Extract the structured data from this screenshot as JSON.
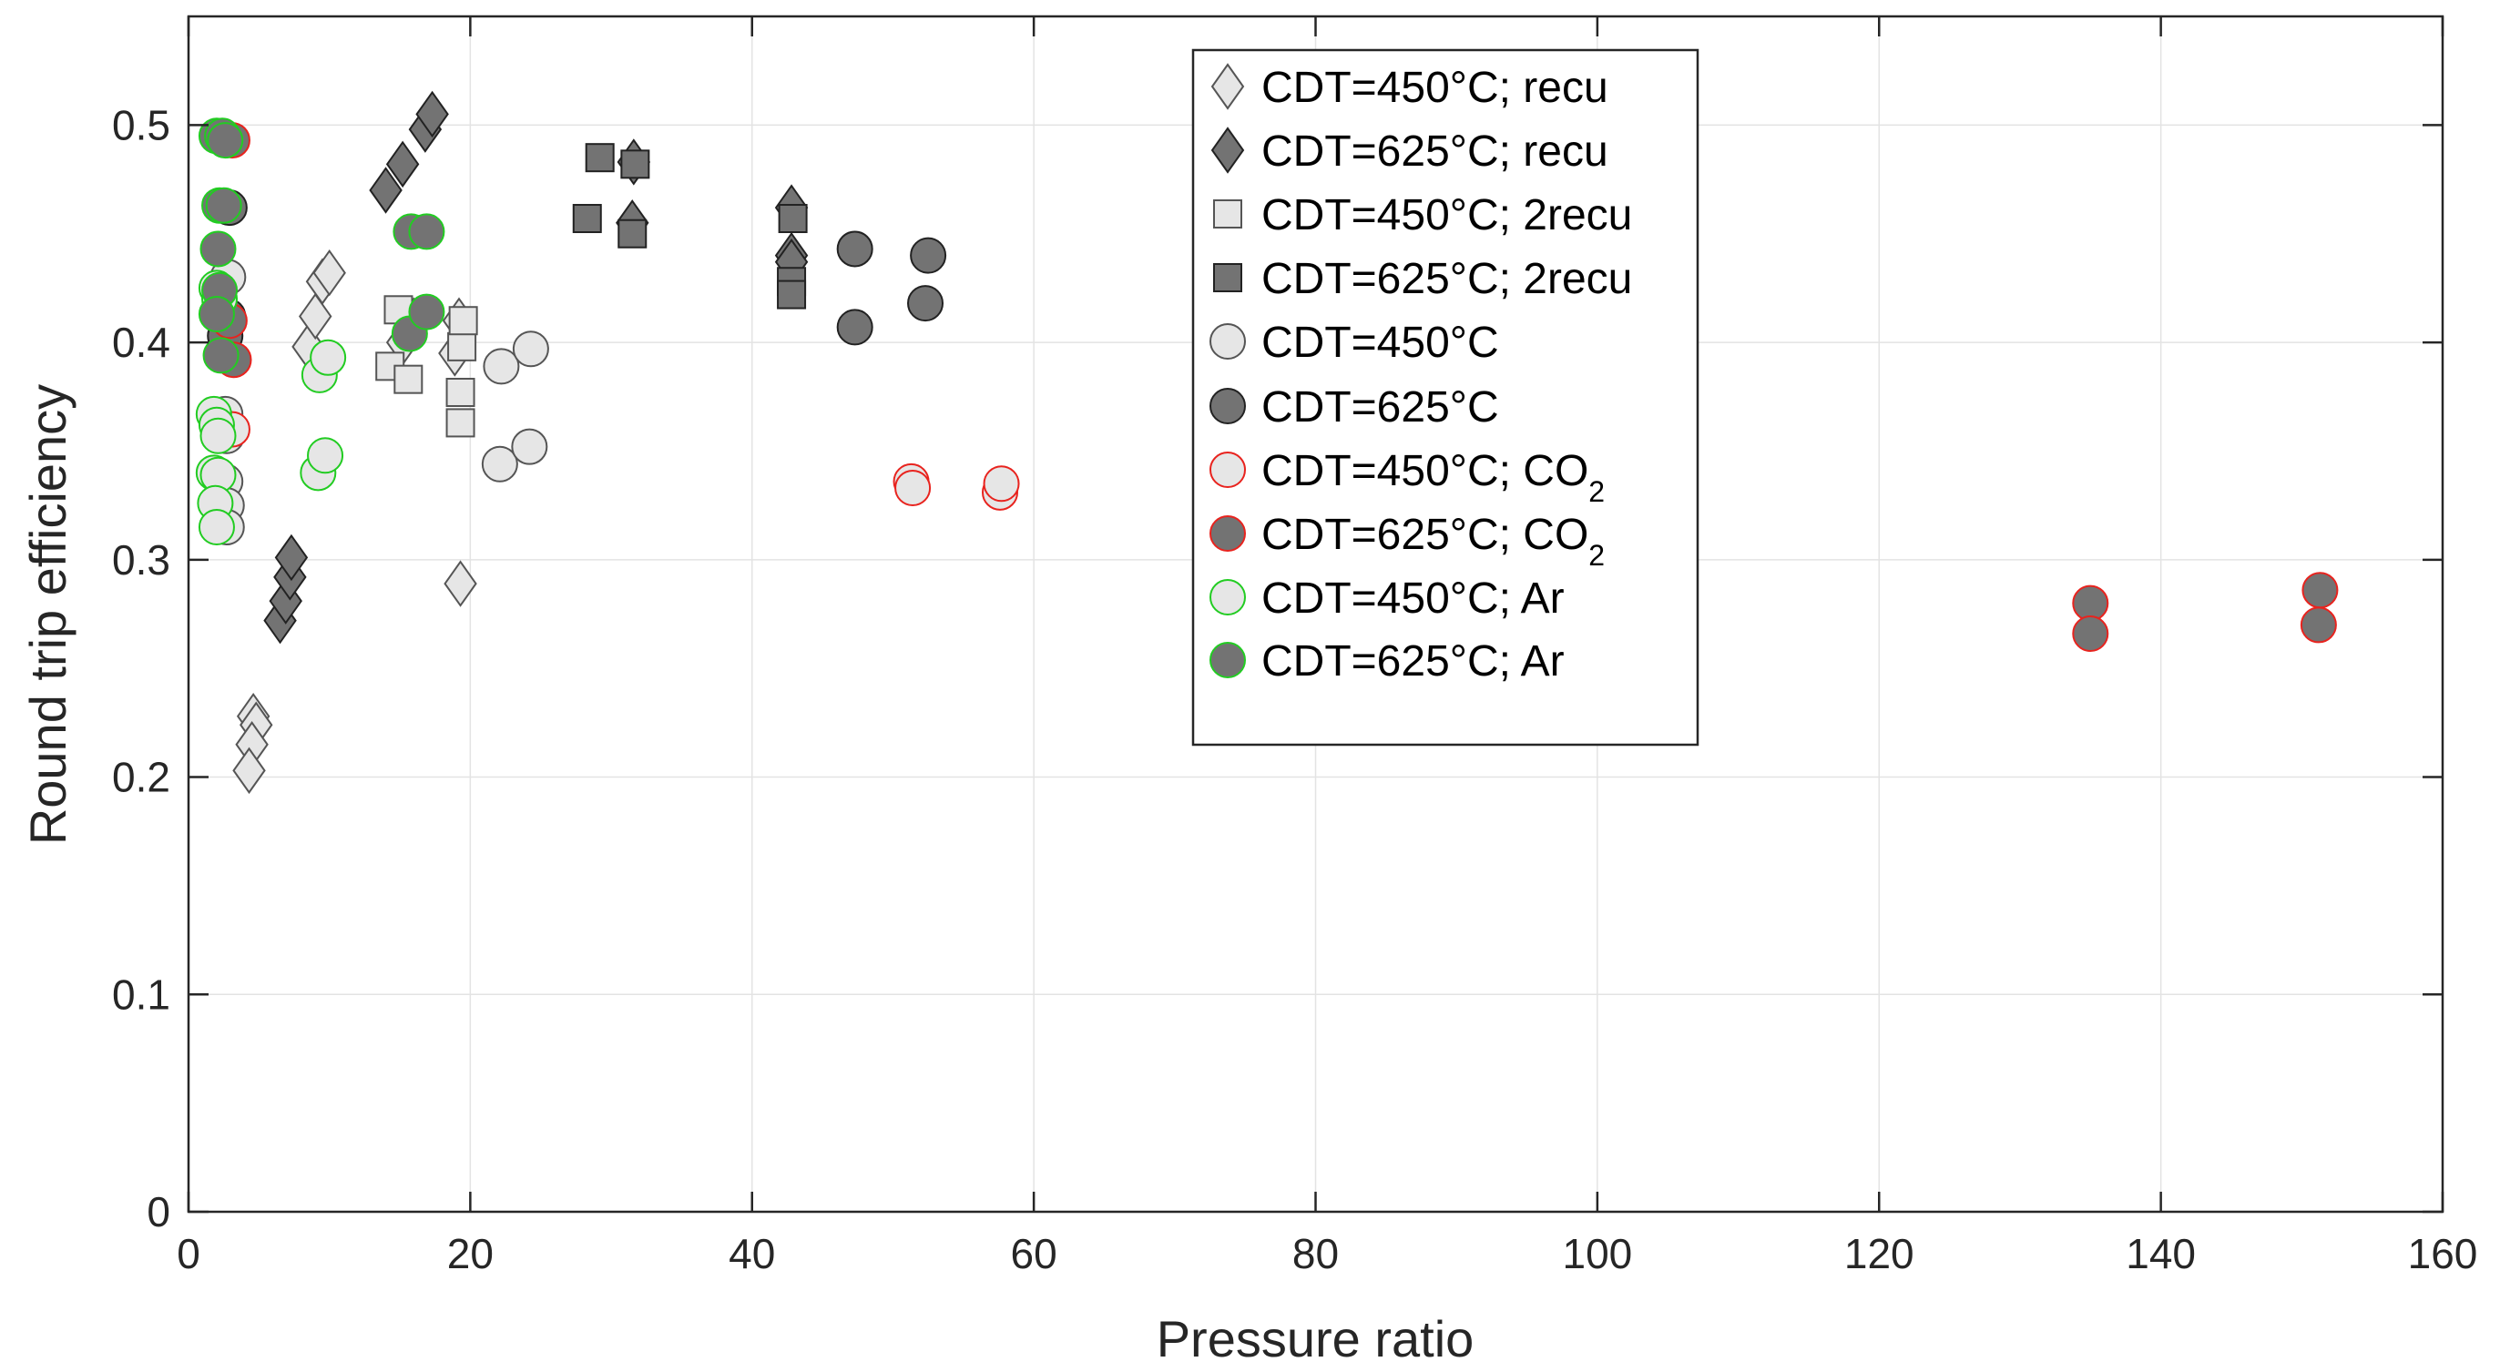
{
  "chart_data": {
    "type": "scatter",
    "title": "",
    "xlabel": "Pressure ratio",
    "ylabel": "Round trip efficiency",
    "xlim": [
      0,
      160
    ],
    "ylim": [
      0,
      0.55
    ],
    "xticks": [
      0,
      20,
      40,
      60,
      80,
      100,
      120,
      140,
      160
    ],
    "yticks": [
      0,
      0.1,
      0.2,
      0.3,
      0.4,
      0.5
    ],
    "xtick_labels": [
      "0",
      "20",
      "40",
      "60",
      "80",
      "100",
      "120",
      "140",
      "160"
    ],
    "ytick_labels": [
      "0",
      "0.1",
      "0.2",
      "0.3",
      "0.4",
      "0.5"
    ],
    "grid": true,
    "legend_position": "top-center",
    "series": [
      {
        "name": "CDT=450°C; recu",
        "label_main": "CDT=450°C; recu",
        "label_sub": "",
        "marker": "diamond",
        "fill": "#e6e6e6",
        "edge": "#555555",
        "points": [
          [
            4.6,
            0.228
          ],
          [
            4.8,
            0.224
          ],
          [
            4.5,
            0.215
          ],
          [
            4.3,
            0.203
          ],
          [
            8.5,
            0.398
          ],
          [
            9.0,
            0.412
          ],
          [
            9.5,
            0.428
          ],
          [
            10.0,
            0.432
          ],
          [
            19.3,
            0.289
          ],
          [
            19.2,
            0.41
          ],
          [
            18.9,
            0.395
          ],
          [
            16.0,
            0.41
          ],
          [
            15.2,
            0.4
          ]
        ]
      },
      {
        "name": "CDT=625°C; recu",
        "label_main": "CDT=625°C; recu",
        "label_sub": "",
        "marker": "diamond",
        "fill": "#737373",
        "edge": "#222222",
        "points": [
          [
            6.5,
            0.272
          ],
          [
            6.9,
            0.281
          ],
          [
            7.2,
            0.292
          ],
          [
            7.3,
            0.301
          ],
          [
            14.0,
            0.47
          ],
          [
            15.2,
            0.482
          ],
          [
            16.8,
            0.498
          ],
          [
            17.3,
            0.505
          ],
          [
            31.6,
            0.483
          ],
          [
            31.5,
            0.455
          ],
          [
            42.8,
            0.462
          ],
          [
            42.8,
            0.44
          ],
          [
            42.8,
            0.437
          ]
        ]
      },
      {
        "name": "CDT=450°C; 2recu",
        "label_main": "CDT=450°C; 2recu",
        "label_sub": "",
        "marker": "square",
        "fill": "#e6e6e6",
        "edge": "#555555",
        "points": [
          [
            14.3,
            0.389
          ],
          [
            14.9,
            0.415
          ],
          [
            15.6,
            0.383
          ],
          [
            19.3,
            0.363
          ],
          [
            19.3,
            0.377
          ],
          [
            19.4,
            0.398
          ],
          [
            19.5,
            0.41
          ]
        ]
      },
      {
        "name": "CDT=625°C; 2recu",
        "label_main": "CDT=625°C; 2recu",
        "label_sub": "",
        "marker": "square",
        "fill": "#737373",
        "edge": "#222222",
        "points": [
          [
            28.3,
            0.457
          ],
          [
            29.2,
            0.485
          ],
          [
            31.5,
            0.45
          ],
          [
            31.7,
            0.482
          ],
          [
            42.9,
            0.457
          ],
          [
            42.8,
            0.428
          ],
          [
            42.8,
            0.422
          ]
        ]
      },
      {
        "name": "CDT=450°C",
        "label_main": "CDT=450°C",
        "label_sub": "",
        "marker": "circle",
        "fill": "#e6e6e6",
        "edge": "#555555",
        "points": [
          [
            22.1,
            0.344
          ],
          [
            22.2,
            0.389
          ],
          [
            24.2,
            0.352
          ],
          [
            24.3,
            0.397
          ],
          [
            2.6,
            0.367
          ],
          [
            2.7,
            0.357
          ],
          [
            2.6,
            0.336
          ],
          [
            2.7,
            0.325
          ],
          [
            2.7,
            0.315
          ],
          [
            2.8,
            0.43
          ]
        ]
      },
      {
        "name": "CDT=625°C",
        "label_main": "CDT=625°C",
        "label_sub": "",
        "marker": "circle",
        "fill": "#737373",
        "edge": "#222222",
        "points": [
          [
            47.3,
            0.443
          ],
          [
            47.3,
            0.407
          ],
          [
            52.5,
            0.44
          ],
          [
            52.3,
            0.418
          ],
          [
            2.8,
            0.412
          ],
          [
            2.6,
            0.403
          ],
          [
            2.9,
            0.462
          ]
        ]
      },
      {
        "name": "CDT=450°C; CO2",
        "label_main": "CDT=450°C; CO",
        "label_sub": "2",
        "marker": "circle",
        "fill": "#e6e6e6",
        "edge": "#e8231e",
        "points": [
          [
            51.3,
            0.336
          ],
          [
            51.4,
            0.333
          ],
          [
            57.6,
            0.331
          ],
          [
            57.7,
            0.335
          ],
          [
            3.1,
            0.36
          ]
        ]
      },
      {
        "name": "CDT=625°C; CO2",
        "label_main": "CDT=625°C; CO",
        "label_sub": "2",
        "marker": "circle",
        "fill": "#737373",
        "edge": "#e8231e",
        "points": [
          [
            135.0,
            0.28
          ],
          [
            135.0,
            0.266
          ],
          [
            151.3,
            0.286
          ],
          [
            151.2,
            0.27
          ],
          [
            3.1,
            0.493
          ],
          [
            3.2,
            0.392
          ],
          [
            2.9,
            0.41
          ]
        ]
      },
      {
        "name": "CDT=450°C; Ar",
        "label_main": "CDT=450°C; Ar",
        "label_sub": "",
        "marker": "circle",
        "fill": "#e6e6e6",
        "edge": "#22cc22",
        "points": [
          [
            9.2,
            0.34
          ],
          [
            9.7,
            0.348
          ],
          [
            9.3,
            0.385
          ],
          [
            9.9,
            0.393
          ],
          [
            1.8,
            0.367
          ],
          [
            2.0,
            0.362
          ],
          [
            2.1,
            0.357
          ],
          [
            1.8,
            0.34
          ],
          [
            2.1,
            0.339
          ],
          [
            1.9,
            0.326
          ],
          [
            2.0,
            0.315
          ],
          [
            2.0,
            0.425
          ],
          [
            2.2,
            0.42
          ]
        ]
      },
      {
        "name": "CDT=625°C; Ar",
        "label_main": "CDT=625°C; Ar",
        "label_sub": "",
        "marker": "circle",
        "fill": "#737373",
        "edge": "#22cc22",
        "points": [
          [
            15.8,
            0.451
          ],
          [
            16.9,
            0.451
          ],
          [
            15.7,
            0.404
          ],
          [
            16.9,
            0.414
          ],
          [
            2.0,
            0.495
          ],
          [
            2.4,
            0.495
          ],
          [
            2.2,
            0.463
          ],
          [
            2.5,
            0.463
          ],
          [
            2.1,
            0.443
          ],
          [
            2.2,
            0.424
          ],
          [
            2.0,
            0.413
          ],
          [
            2.3,
            0.394
          ],
          [
            2.6,
            0.493
          ]
        ]
      }
    ]
  }
}
